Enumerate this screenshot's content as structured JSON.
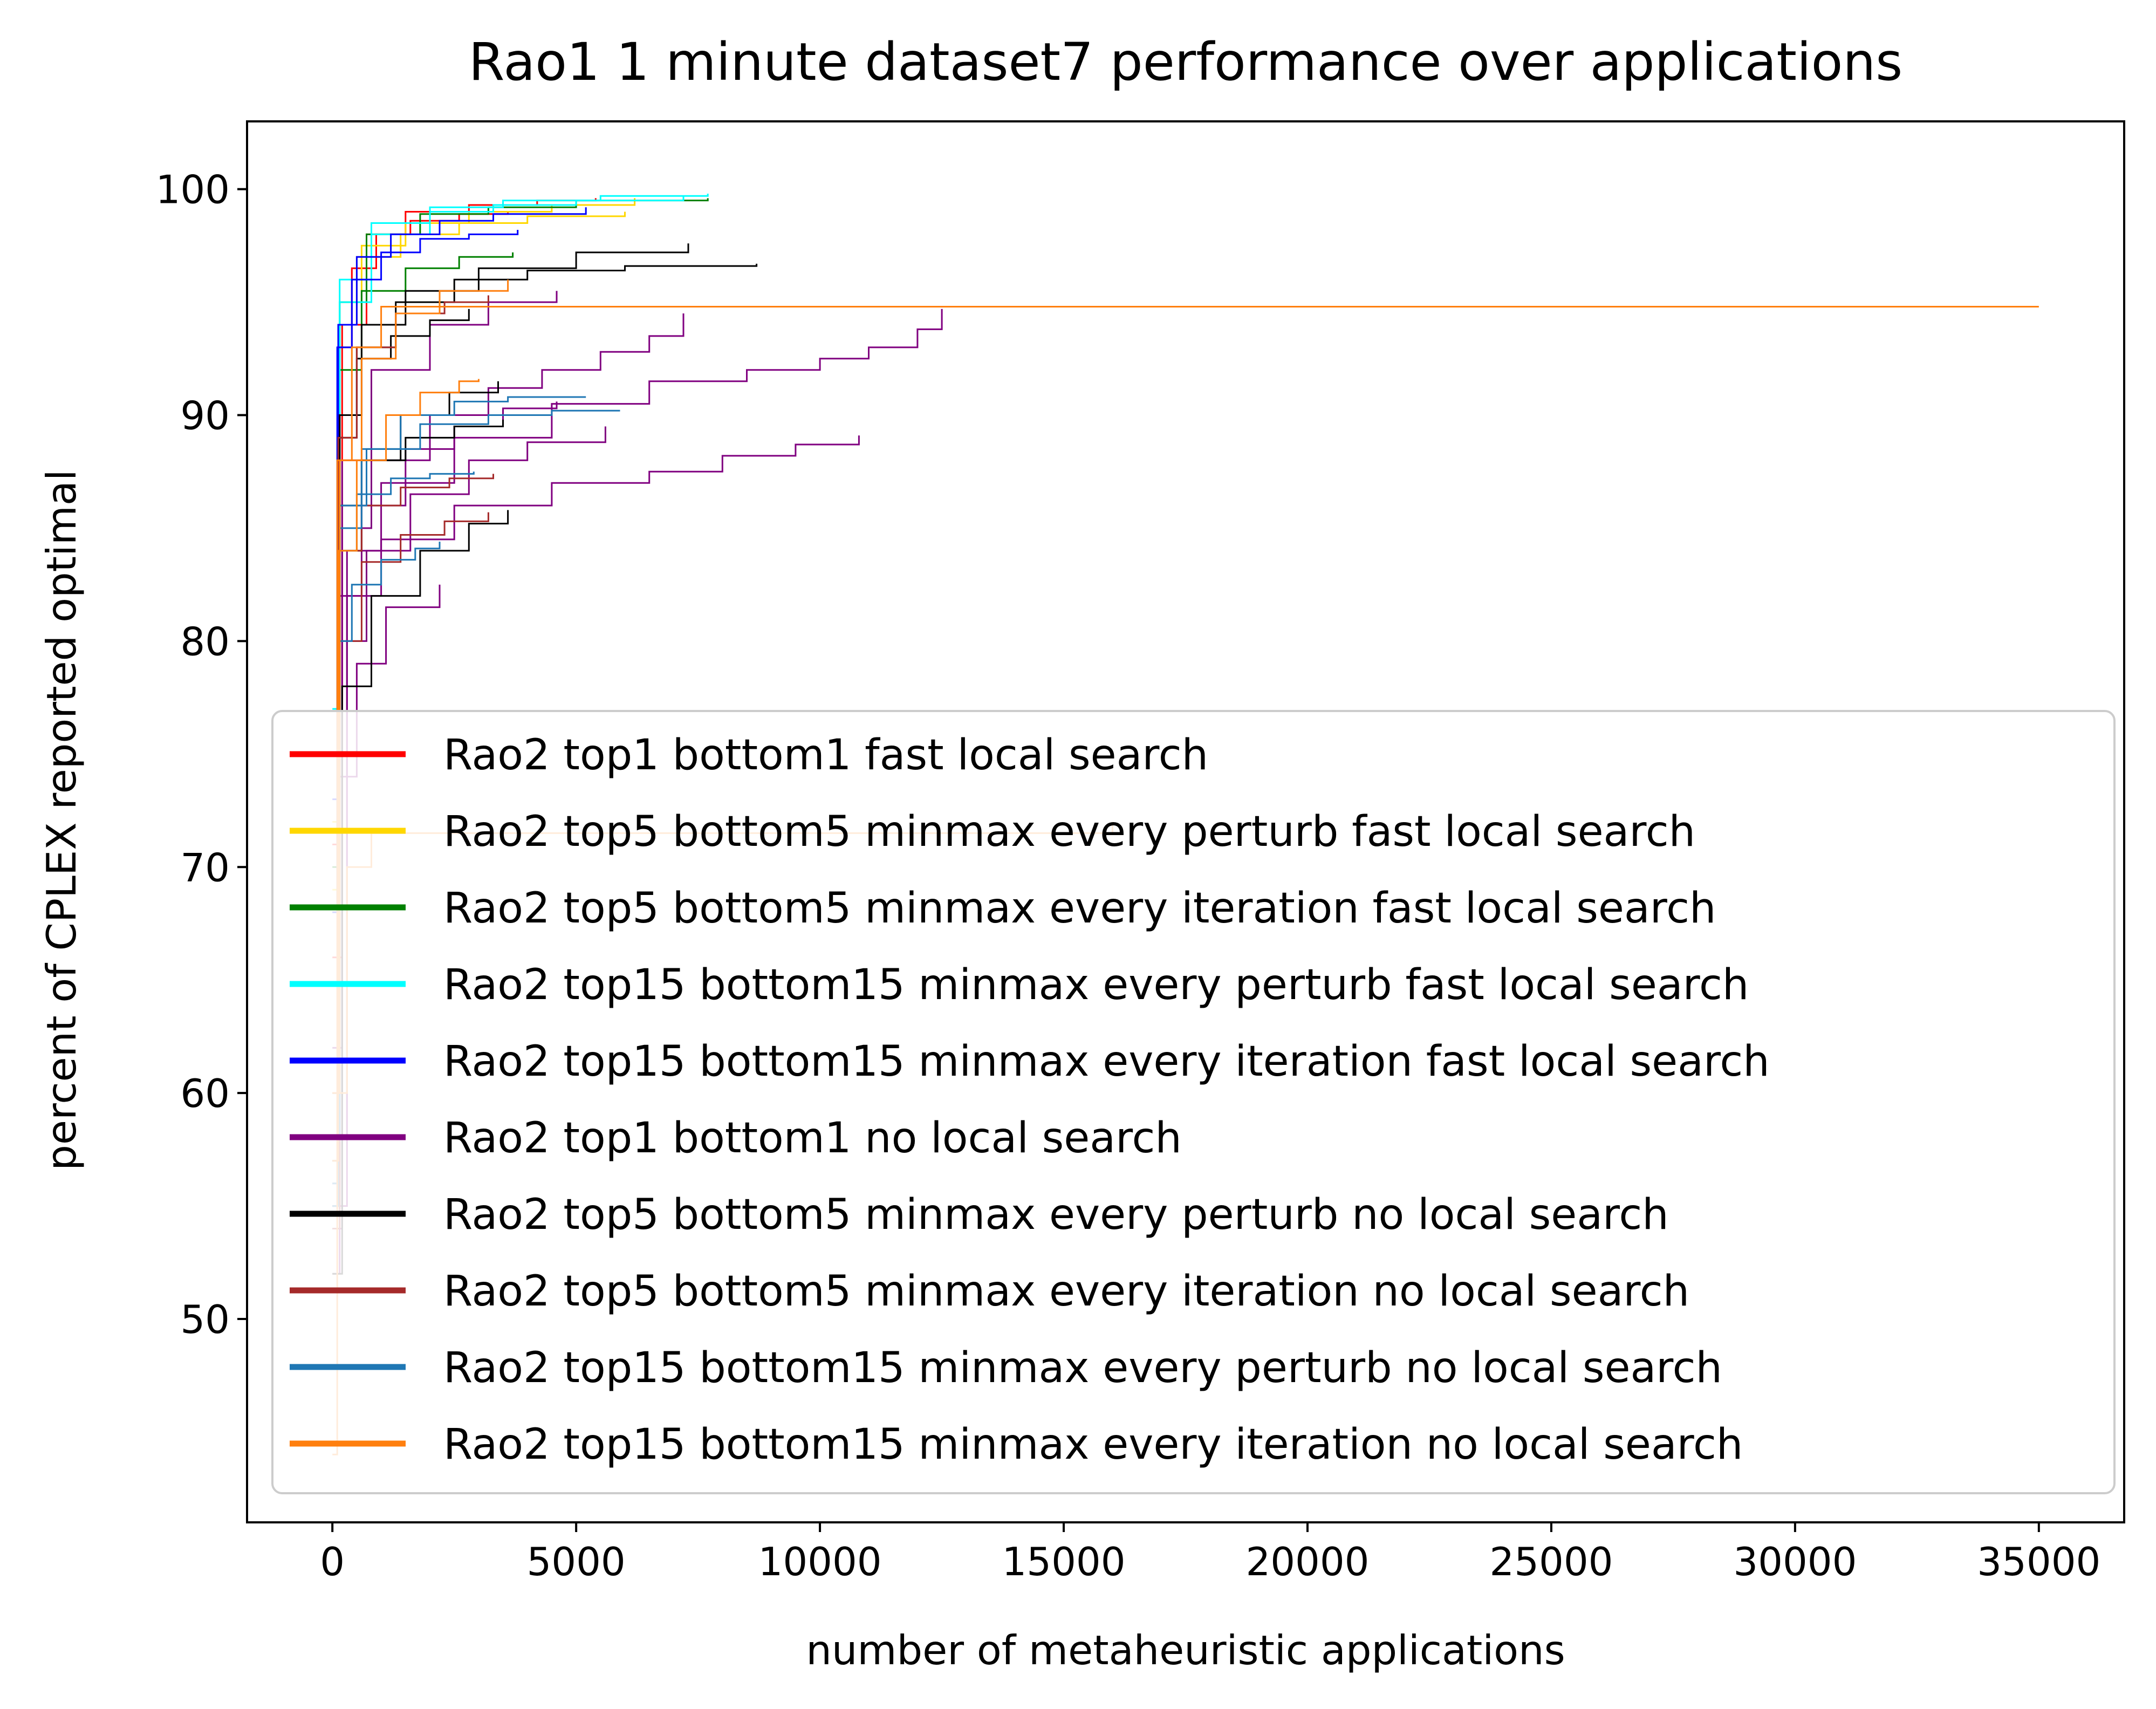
{
  "chart_data": {
    "type": "line",
    "title": "Rao1 1 minute dataset7 performance over applications",
    "xlabel": "number of metaheuristic applications",
    "ylabel": "percent of CPLEX reported optimal",
    "xlim": [
      -1750,
      36750
    ],
    "ylim": [
      41,
      103
    ],
    "xticks": [
      0,
      5000,
      10000,
      15000,
      20000,
      25000,
      30000,
      35000
    ],
    "yticks": [
      50,
      60,
      70,
      80,
      90,
      100
    ],
    "grid": false,
    "legend_position": "lower-right",
    "series": [
      {
        "name": "Rao2 top1 bottom1 fast local search",
        "color": "#ff0000",
        "runs": [
          {
            "x": [
              0,
              150,
              400,
              900,
              1600,
              2600,
              3600
            ],
            "y": [
              71,
              93.0,
              96.5,
              98.0,
              98.6,
              98.9,
              99.0
            ]
          },
          {
            "x": [
              0,
              200,
              700,
              1500,
              2800,
              4200,
              5400
            ],
            "y": [
              66,
              94.0,
              98.0,
              99.0,
              99.3,
              99.5,
              99.6
            ]
          }
        ]
      },
      {
        "name": "Rao2 top5 bottom5 minmax every perturb fast local search",
        "color": "#ffd700",
        "runs": [
          {
            "x": [
              0,
              150,
              600,
              1500,
              2800,
              4500,
              6200
            ],
            "y": [
              72,
              95.0,
              97.5,
              98.5,
              99.0,
              99.3,
              99.6
            ]
          },
          {
            "x": [
              0,
              120,
              500,
              1400,
              2600,
              4000,
              6000
            ],
            "y": [
              69,
              94.0,
              97.0,
              98.0,
              98.5,
              98.8,
              99.0
            ]
          }
        ]
      },
      {
        "name": "Rao2 top5 bottom5 minmax every iteration fast local search",
        "color": "#008000",
        "runs": [
          {
            "x": [
              0,
              150,
              700,
              1800,
              3200,
              5000,
              7700
            ],
            "y": [
              75,
              95.0,
              98.0,
              98.9,
              99.2,
              99.5,
              99.6
            ]
          },
          {
            "x": [
              0,
              120,
              600,
              1500,
              2600,
              3700
            ],
            "y": [
              70,
              92.0,
              95.5,
              96.5,
              97.0,
              97.2
            ]
          }
        ]
      },
      {
        "name": "Rao2 top15 bottom15 minmax every perturb fast local search",
        "color": "#00ffff",
        "runs": [
          {
            "x": [
              0,
              150,
              800,
              2000,
              3500,
              5500,
              7700
            ],
            "y": [
              77,
              96.0,
              98.5,
              99.2,
              99.5,
              99.7,
              99.8
            ]
          },
          {
            "x": [
              0,
              150,
              800,
              2000,
              3300,
              5000,
              7200
            ],
            "y": [
              75,
              95.0,
              98.0,
              99.0,
              99.3,
              99.5,
              99.7
            ]
          }
        ]
      },
      {
        "name": "Rao2 top15 bottom15 minmax every iteration fast local search",
        "color": "#0000ff",
        "runs": [
          {
            "x": [
              0,
              120,
              500,
              1200,
              2200,
              3300,
              5200
            ],
            "y": [
              73,
              94.0,
              97.0,
              98.0,
              98.6,
              98.9,
              99.2
            ]
          },
          {
            "x": [
              0,
              100,
              400,
              1000,
              1800,
              2800,
              3800
            ],
            "y": [
              68,
              93.0,
              96.0,
              97.2,
              97.8,
              98.0,
              98.2
            ]
          }
        ]
      },
      {
        "name": "Rao2 top1 bottom1 no local search",
        "color": "#800080",
        "runs": [
          {
            "x": [
              0,
              300,
              1000,
              2500,
              4500,
              6500,
              8500,
              10000,
              11000,
              12000,
              12500
            ],
            "y": [
              58,
              84.0,
              87.0,
              89.0,
              90.5,
              91.5,
              92.0,
              92.5,
              93.0,
              93.8,
              94.7
            ]
          },
          {
            "x": [
              0,
              300,
              1000,
              2500,
              4500,
              6500,
              8000,
              9500,
              10800
            ],
            "y": [
              55,
              82.0,
              84.5,
              86.0,
              87.0,
              87.5,
              88.2,
              88.7,
              89.1
            ]
          },
          {
            "x": [
              0,
              200,
              800,
              2000,
              3200,
              4300,
              5500,
              6500,
              7200
            ],
            "y": [
              60,
              85.0,
              88.0,
              90.0,
              91.2,
              92.0,
              92.8,
              93.5,
              94.5
            ]
          },
          {
            "x": [
              0,
              150,
              600,
              1500,
              2500,
              3500,
              4600
            ],
            "y": [
              56,
              82.0,
              86.0,
              88.5,
              89.5,
              90.3,
              90.6
            ]
          },
          {
            "x": [
              0,
              150,
              500,
              1100,
              2200
            ],
            "y": [
              52,
              74.0,
              79.0,
              81.5,
              82.5
            ]
          },
          {
            "x": [
              0,
              200,
              800,
              2000,
              3200,
              4600
            ],
            "y": [
              62,
              88.0,
              92.0,
              94.0,
              95.0,
              95.5
            ]
          },
          {
            "x": [
              0,
              200,
              700,
              1600,
              2800,
              4000,
              5600
            ],
            "y": [
              54,
              80.0,
              84.0,
              86.5,
              88.0,
              88.8,
              89.5
            ]
          }
        ]
      },
      {
        "name": "Rao2 top5 bottom5 minmax every perturb no local search",
        "color": "#000000",
        "runs": [
          {
            "x": [
              0,
              150,
              600,
              1500,
              3000,
              5000,
              7300
            ],
            "y": [
              60,
              90.0,
              94.0,
              95.5,
              96.5,
              97.2,
              97.6
            ]
          },
          {
            "x": [
              0,
              120,
              500,
              1300,
              2500,
              4000,
              6000,
              8700
            ],
            "y": [
              58,
              89.0,
              93.0,
              95.0,
              96.0,
              96.4,
              96.6,
              96.7
            ]
          },
          {
            "x": [
              0,
              150,
              600,
              1400,
              2400,
              3400
            ],
            "y": [
              55,
              84.0,
              88.0,
              90.0,
              91.0,
              91.5
            ]
          },
          {
            "x": [
              0,
              200,
              800,
              1800,
              2800,
              3600
            ],
            "y": [
              52,
              78.0,
              82.0,
              84.0,
              85.2,
              85.8
            ]
          },
          {
            "x": [
              0,
              150,
              600,
              1500,
              2500,
              3500
            ],
            "y": [
              57,
              86.0,
              88.0,
              89.0,
              89.5,
              89.8
            ]
          },
          {
            "x": [
              0,
              150,
              500,
              1200,
              2000,
              2800
            ],
            "y": [
              60,
              90.0,
              92.5,
              93.5,
              94.2,
              94.7
            ]
          }
        ]
      },
      {
        "name": "Rao2 top5 bottom5 minmax every iteration no local search",
        "color": "#a52a2a",
        "runs": [
          {
            "x": [
              0,
              150,
              600,
              1400,
              2300,
              3200
            ],
            "y": [
              54,
              80.0,
              83.5,
              84.7,
              85.3,
              85.7
            ]
          },
          {
            "x": [
              0,
              150,
              600,
              1400,
              2400,
              3300
            ],
            "y": [
              58,
              84.0,
              86.0,
              86.8,
              87.2,
              87.4
            ]
          },
          {
            "x": [
              0,
              120,
              500,
              1300,
              2300,
              3200
            ],
            "y": [
              60,
              89.0,
              93.0,
              94.5,
              95.0,
              95.3
            ]
          }
        ]
      },
      {
        "name": "Rao2 top15 bottom15 minmax every perturb no local search",
        "color": "#1f77b4",
        "runs": [
          {
            "x": [
              0,
              120,
              400,
              1000,
              1700,
              2200
            ],
            "y": [
              55,
              80.0,
              82.5,
              83.6,
              84.1,
              84.4
            ]
          },
          {
            "x": [
              0,
              120,
              500,
              1200,
              2000,
              2900
            ],
            "y": [
              56,
              84.0,
              86.5,
              87.2,
              87.4,
              87.5
            ]
          },
          {
            "x": [
              0,
              150,
              700,
              1800,
              3200,
              4500,
              5900
            ],
            "y": [
              60,
              86.0,
              88.5,
              89.6,
              90.0,
              90.2,
              90.2
            ]
          },
          {
            "x": [
              0,
              150,
              600,
              1400,
              2500,
              3600,
              5200
            ],
            "y": [
              58,
              85.0,
              88.5,
              90.0,
              90.6,
              90.8,
              90.8
            ]
          }
        ]
      },
      {
        "name": "Rao2 top15 bottom15 minmax every iteration no local search",
        "color": "#ff7f0e",
        "runs": [
          {
            "x": [
              0,
              100,
              400,
              1000,
              35000
            ],
            "y": [
              44,
              88.0,
              93.0,
              94.8,
              94.8
            ]
          },
          {
            "x": [
              0,
              120,
              500,
              1100,
              1800,
              2600,
              3000
            ],
            "y": [
              57,
              84.0,
              88.0,
              90.0,
              91.0,
              91.5,
              91.6
            ]
          },
          {
            "x": [
              0,
              150,
              600,
              1300,
              2200,
              3600
            ],
            "y": [
              60,
              88.0,
              92.5,
              94.5,
              95.5,
              96.0
            ]
          },
          {
            "x": [
              0,
              300,
              800,
              16000
            ],
            "y": [
              60,
              70.0,
              71.5,
              72.0
            ]
          }
        ]
      }
    ]
  }
}
